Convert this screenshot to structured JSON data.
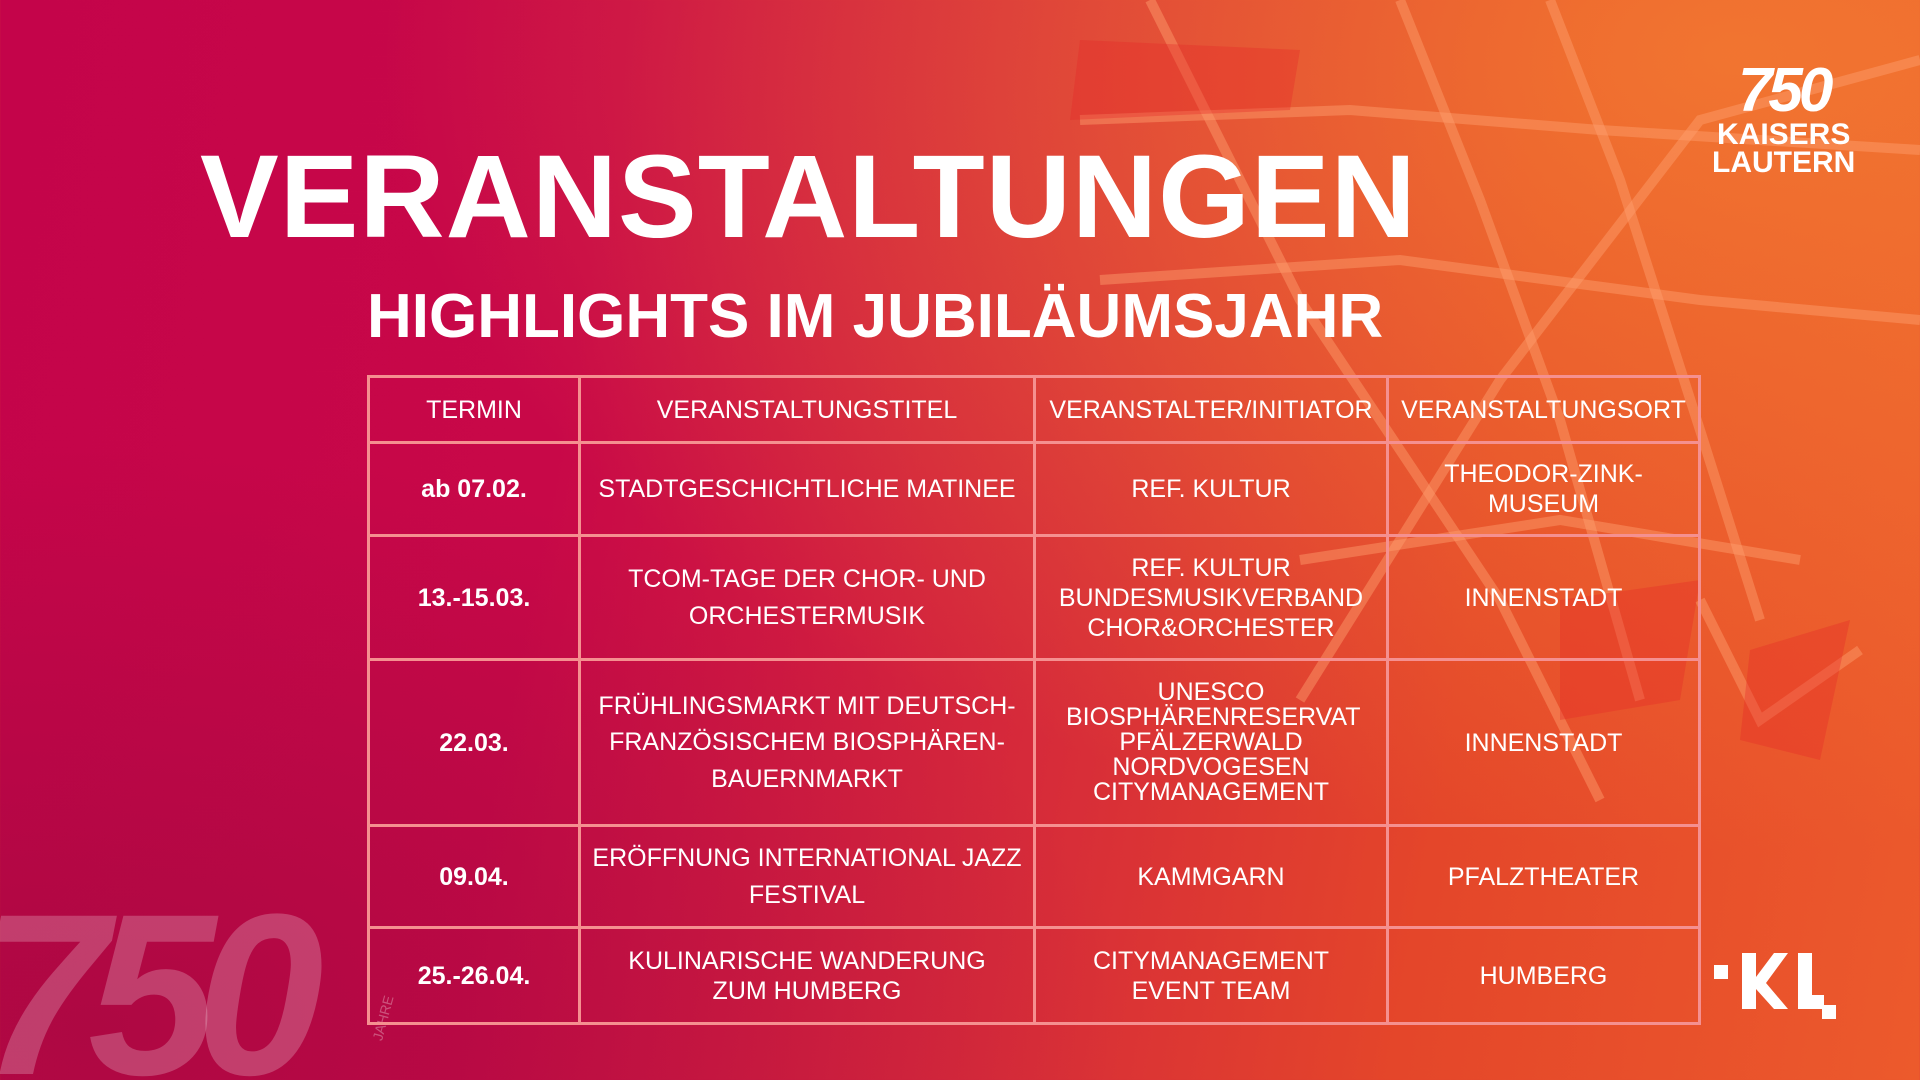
{
  "title": "VERANSTALTUNGEN",
  "subtitle": "HIGHLIGHTS IM JUBILÄUMSJAHR",
  "logo": {
    "number": "750",
    "years": "JAHRE",
    "city_line1": "KAISERS",
    "city_line2": "LAUTERN",
    "brand": "KL"
  },
  "watermark": {
    "number": "750",
    "years": "JAHRE"
  },
  "table": {
    "headers": [
      "TERMIN",
      "VERANSTALTUNGSTITEL",
      "VERANSTALTER/INITIATOR",
      "VERANSTALTUNGSORT"
    ],
    "rows": [
      [
        "ab 07.02.",
        "STADTGESCHICHTLICHE MATINEE",
        "REF. KULTUR",
        "THEODOR-ZINK-MUSEUM"
      ],
      [
        "13.-15.03.",
        "TCOM-TAGE DER CHOR- UND ORCHESTERMUSIK",
        "REF. KULTUR BUNDESMUSIKVERBAND CHOR&ORCHESTER",
        "INNENSTADT"
      ],
      [
        "22.03.",
        "FRÜHLINGSMARKT MIT DEUTSCH-FRANZÖSISCHEM BIOSPHÄREN-BAUERNMARKT",
        "UNESCO BIOSPHÄRENRESERVAT PFÄLZERWALD NORDVOGESEN CITYMANAGEMENT",
        "INNENSTADT"
      ],
      [
        "09.04.",
        "ERÖFFNUNG INTERNATIONAL JAZZ FESTIVAL",
        "KAMMGARN",
        "PFALZTHEATER"
      ],
      [
        "25.-26.04.",
        "KULINARISCHE WANDERUNG ZUM HUMBERG",
        "CITYMANAGEMENT EVENT TEAM",
        "HUMBERG"
      ]
    ]
  },
  "colors": {
    "magenta": "#c4044a",
    "orange": "#ec5a2c",
    "border": "#f59090"
  }
}
